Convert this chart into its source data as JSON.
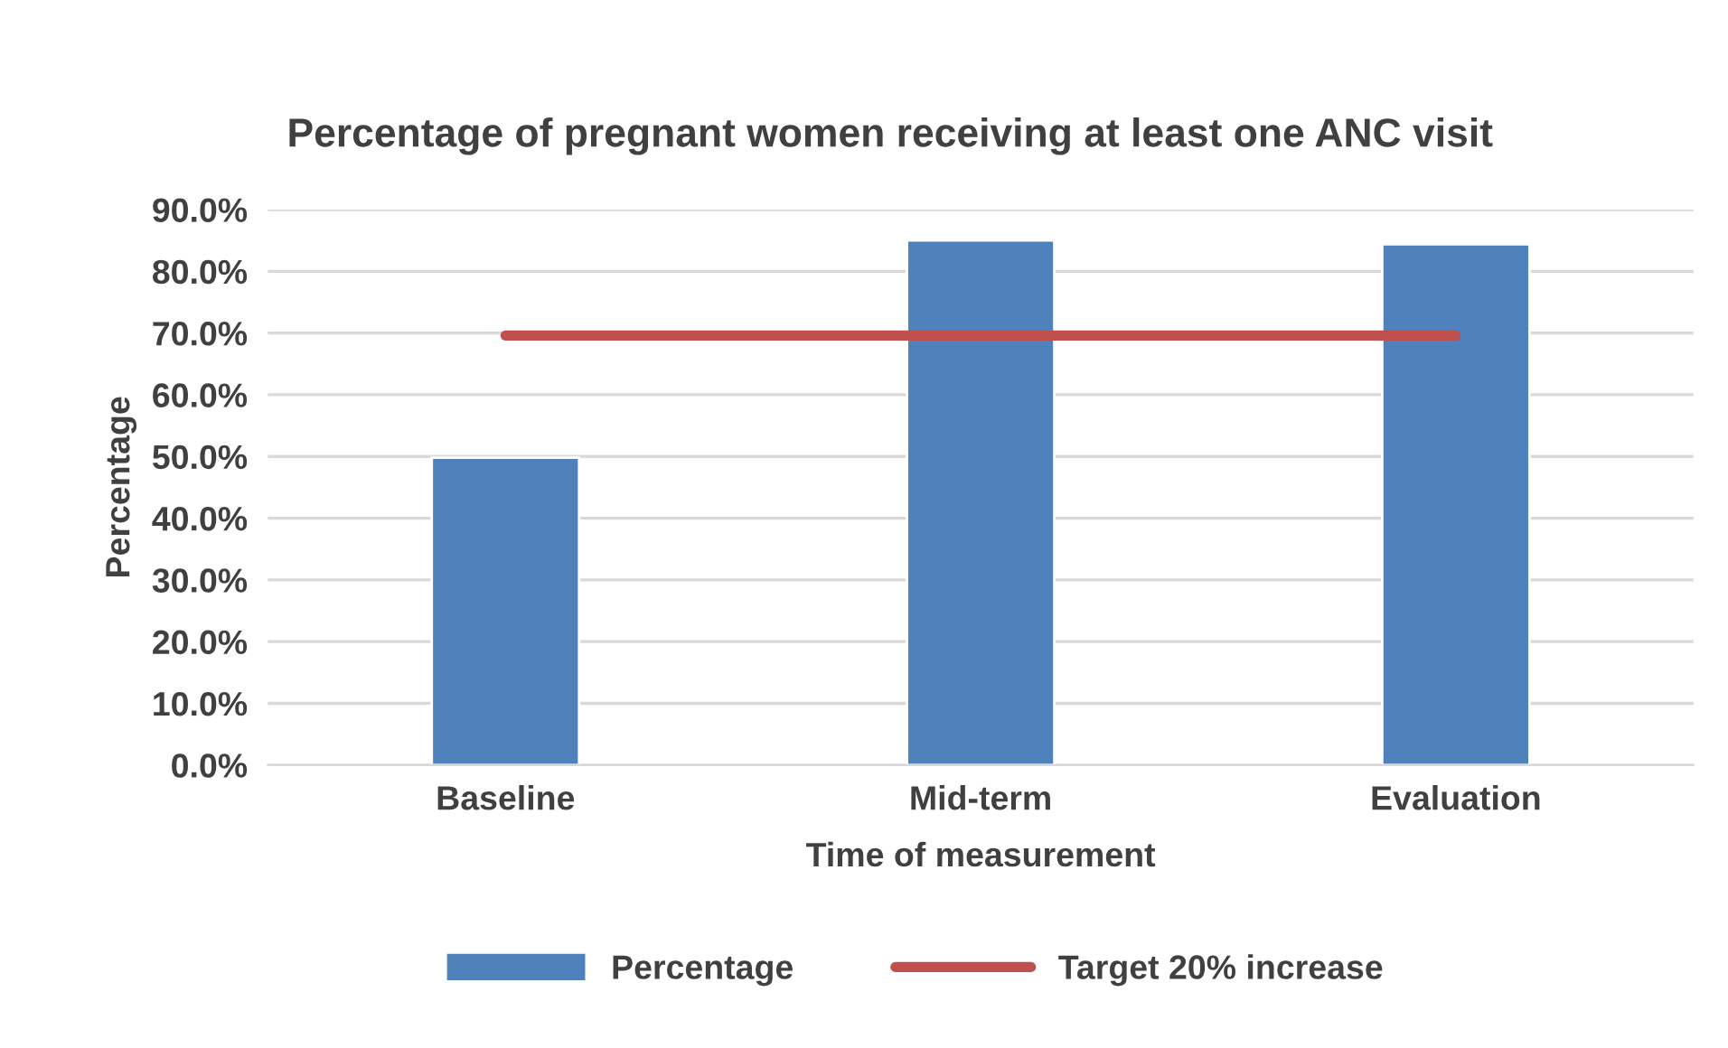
{
  "chart_data": {
    "type": "bar",
    "title": "Percentage of pregnant women receiving at least one ANC visit",
    "xlabel": "Time of measurement",
    "ylabel": "Percentage",
    "categories": [
      "Baseline",
      "Mid-term",
      "Evaluation"
    ],
    "series": [
      {
        "name": "Percentage",
        "color": "#4f81bd",
        "values": [
          49.8,
          85.0,
          84.4
        ]
      },
      {
        "name": "Target 20% increase",
        "type": "line",
        "color": "#c0504d",
        "values": [
          69.6,
          69.6,
          69.6
        ]
      }
    ],
    "ylim": [
      0,
      90
    ],
    "yticks": [
      {
        "value": 0,
        "label": "0.0%"
      },
      {
        "value": 10,
        "label": "10.0%"
      },
      {
        "value": 20,
        "label": "20.0%"
      },
      {
        "value": 30,
        "label": "30.0%"
      },
      {
        "value": 40,
        "label": "40.0%"
      },
      {
        "value": 50,
        "label": "50.0%"
      },
      {
        "value": 60,
        "label": "60.0%"
      },
      {
        "value": 70,
        "label": "70.0%"
      },
      {
        "value": 80,
        "label": "80.0%"
      },
      {
        "value": 90,
        "label": "90.0%"
      }
    ],
    "grid": "y",
    "legend": "bottom",
    "marker": "none",
    "line_style": "solid"
  }
}
